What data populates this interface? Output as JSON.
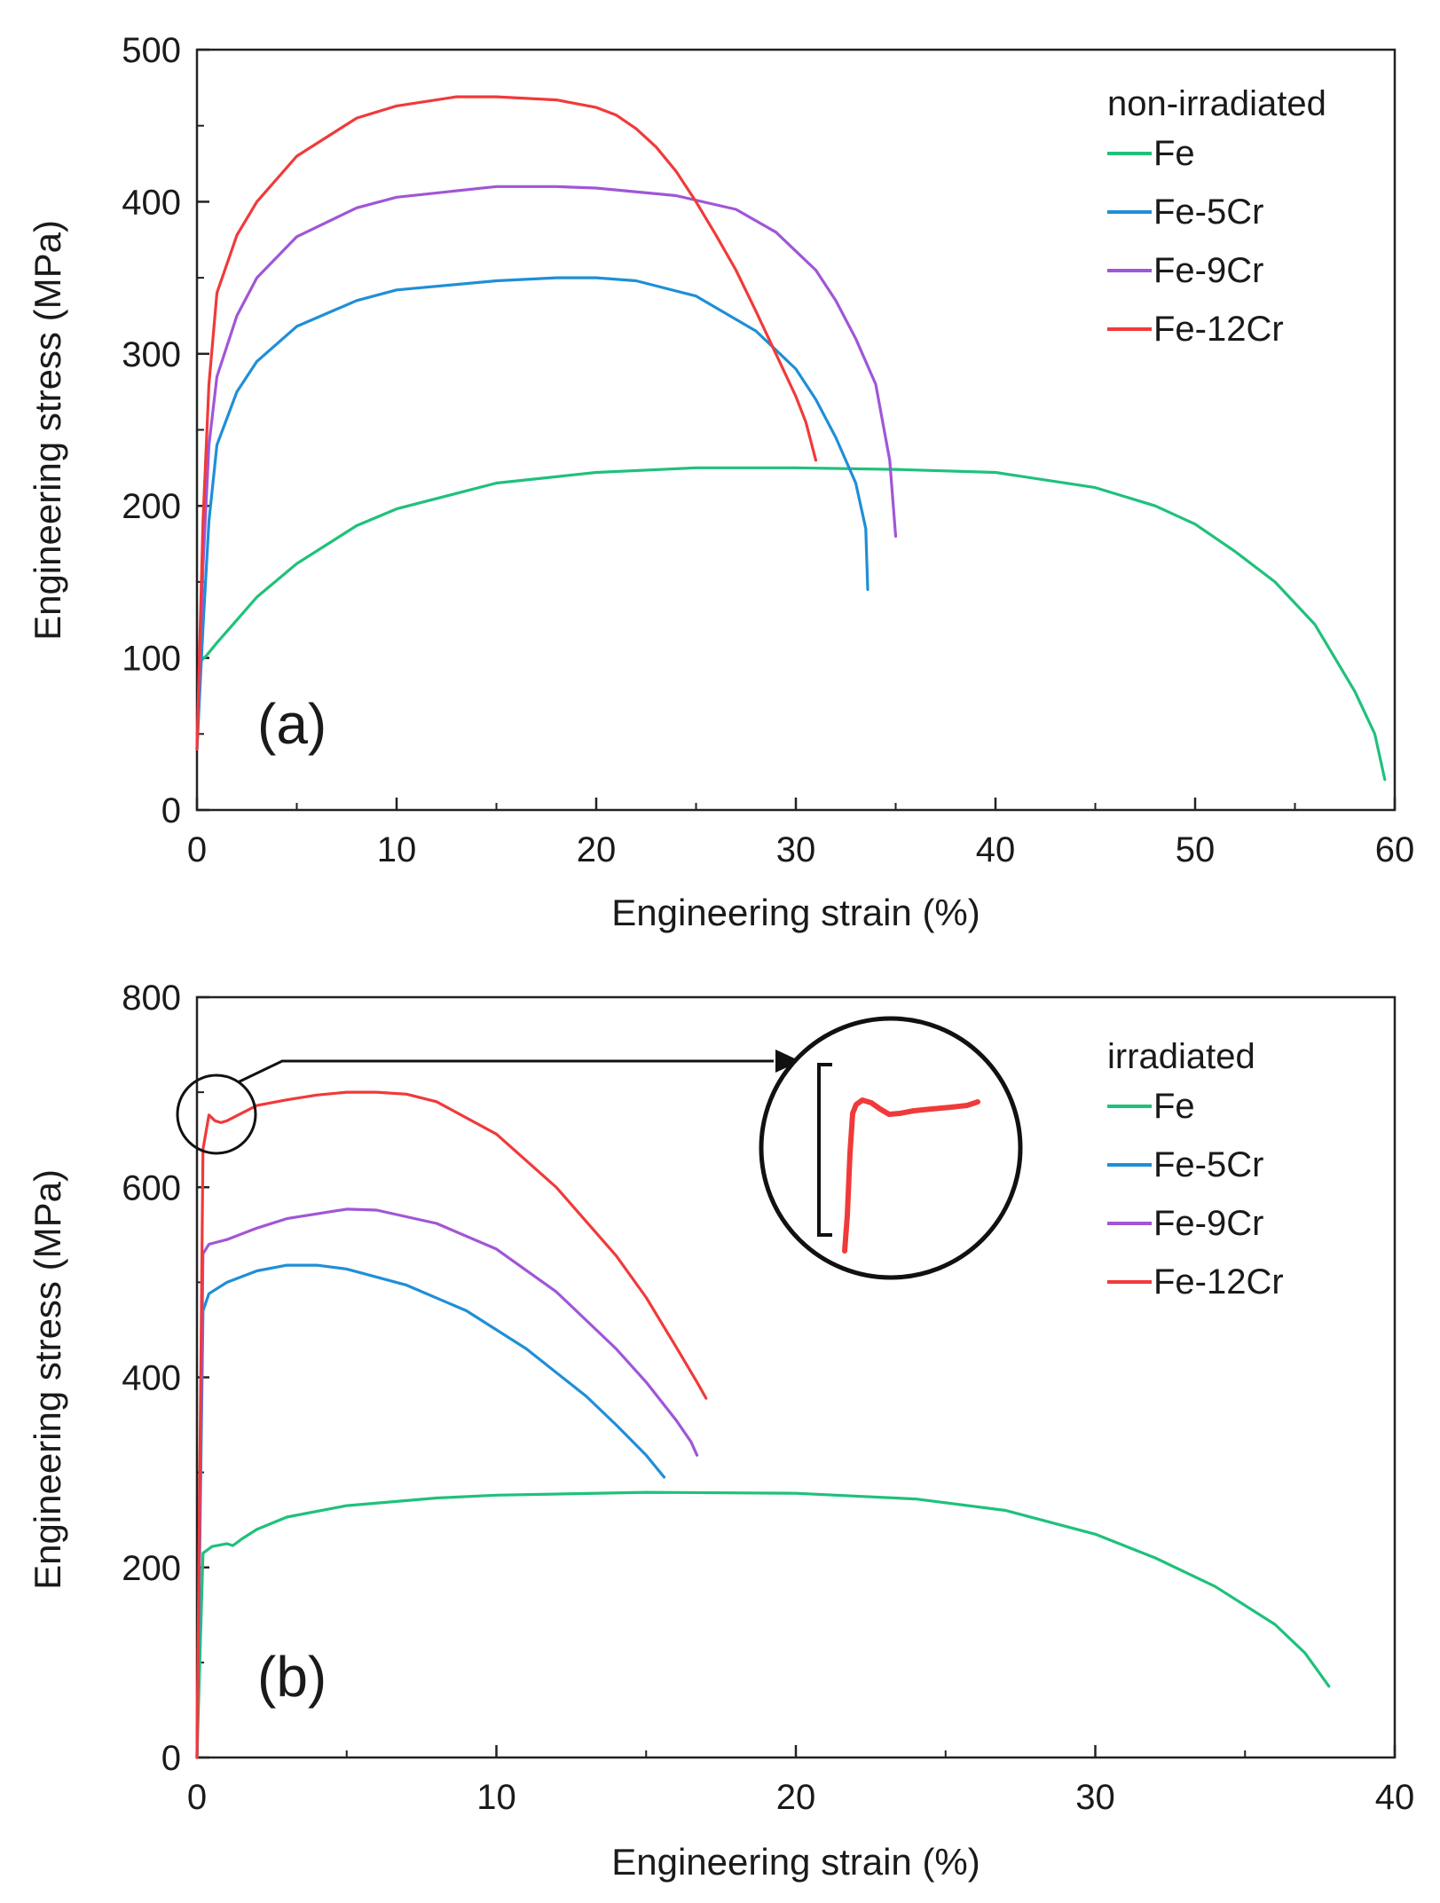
{
  "chart_data": [
    {
      "type": "line",
      "panel_label": "(a)",
      "xlabel": "Engineering strain (%)",
      "ylabel": "Engineering stress (MPa)",
      "xlim": [
        0,
        60
      ],
      "ylim": [
        0,
        500
      ],
      "xticks": [
        0,
        10,
        20,
        30,
        40,
        50,
        60
      ],
      "yticks": [
        0,
        100,
        200,
        300,
        400,
        500
      ],
      "grid": false,
      "legend_title": "non-irradiated",
      "legend_position": "top-right",
      "series": [
        {
          "name": "Fe",
          "color": "#1fc17b",
          "x": [
            0,
            0.2,
            0.5,
            1,
            2,
            3,
            5,
            8,
            10,
            15,
            20,
            25,
            30,
            35,
            40,
            45,
            48,
            50,
            52,
            54,
            56,
            57,
            58,
            59,
            59.5
          ],
          "y": [
            40,
            98,
            102,
            110,
            125,
            140,
            162,
            187,
            198,
            215,
            222,
            225,
            225,
            224,
            222,
            212,
            200,
            188,
            170,
            150,
            122,
            100,
            78,
            50,
            20
          ]
        },
        {
          "name": "Fe-5Cr",
          "color": "#1f8fd6",
          "x": [
            0,
            0.3,
            0.6,
            1,
            2,
            3,
            5,
            8,
            10,
            15,
            18,
            20,
            22,
            25,
            28,
            30,
            31,
            32,
            33,
            33.5,
            33.6
          ],
          "y": [
            40,
            120,
            190,
            240,
            275,
            295,
            318,
            335,
            342,
            348,
            350,
            350,
            348,
            338,
            315,
            290,
            270,
            245,
            215,
            185,
            145
          ]
        },
        {
          "name": "Fe-9Cr",
          "color": "#a056d6",
          "x": [
            0,
            0.3,
            0.6,
            1,
            2,
            3,
            5,
            8,
            10,
            15,
            18,
            20,
            24,
            27,
            29,
            31,
            32,
            33,
            34,
            34.7,
            35
          ],
          "y": [
            40,
            160,
            240,
            285,
            325,
            350,
            377,
            396,
            403,
            410,
            410,
            409,
            404,
            395,
            380,
            355,
            335,
            310,
            280,
            230,
            180
          ]
        },
        {
          "name": "Fe-12Cr",
          "color": "#f03a3a",
          "x": [
            0,
            0.3,
            0.6,
            1,
            2,
            3,
            5,
            8,
            10,
            13,
            15,
            18,
            20,
            21,
            22,
            23,
            24,
            25,
            26,
            27,
            28,
            29,
            30,
            30.5,
            31
          ],
          "y": [
            40,
            190,
            280,
            340,
            378,
            400,
            430,
            455,
            463,
            469,
            469,
            467,
            462,
            457,
            448,
            436,
            420,
            400,
            378,
            355,
            328,
            300,
            272,
            255,
            230
          ]
        }
      ]
    },
    {
      "type": "line",
      "panel_label": "(b)",
      "xlabel": "Engineering strain (%)",
      "ylabel": "Engineering stress (MPa)",
      "xlim": [
        0,
        40
      ],
      "ylim": [
        0,
        800
      ],
      "xticks": [
        0,
        10,
        20,
        30,
        40
      ],
      "yticks": [
        0,
        200,
        400,
        600,
        800
      ],
      "grid": false,
      "legend_title": "irradiated",
      "legend_position": "top-right",
      "series": [
        {
          "name": "Fe",
          "color": "#1fc17b",
          "x": [
            0,
            0.2,
            0.5,
            1,
            1.2,
            1.5,
            2,
            3,
            5,
            8,
            10,
            15,
            20,
            24,
            27,
            30,
            32,
            34,
            36,
            37,
            37.8
          ],
          "y": [
            0,
            215,
            222,
            225,
            223,
            230,
            240,
            253,
            265,
            273,
            276,
            279,
            278,
            272,
            260,
            235,
            210,
            180,
            140,
            110,
            75
          ]
        },
        {
          "name": "Fe-5Cr",
          "color": "#1f8fd6",
          "x": [
            0,
            0.2,
            0.4,
            1,
            2,
            3,
            4,
            5,
            7,
            9,
            11,
            13,
            14,
            15,
            15.6
          ],
          "y": [
            0,
            470,
            488,
            500,
            512,
            518,
            518,
            514,
            497,
            470,
            430,
            380,
            350,
            318,
            295
          ]
        },
        {
          "name": "Fe-9Cr",
          "color": "#a056d6",
          "x": [
            0,
            0.2,
            0.4,
            1,
            2,
            3,
            5,
            6,
            8,
            10,
            12,
            14,
            15,
            16,
            16.5,
            16.7
          ],
          "y": [
            0,
            530,
            540,
            545,
            557,
            567,
            577,
            576,
            562,
            535,
            490,
            430,
            395,
            355,
            332,
            318
          ]
        },
        {
          "name": "Fe-12Cr",
          "color": "#f03a3a",
          "x": [
            0,
            0.2,
            0.4,
            0.6,
            0.8,
            1,
            1.5,
            2,
            3,
            4,
            5,
            6,
            7,
            8,
            10,
            12,
            14,
            15,
            16,
            16.7,
            17
          ],
          "y": [
            0,
            640,
            676,
            670,
            668,
            670,
            678,
            686,
            692,
            697,
            700,
            700,
            698,
            690,
            656,
            600,
            528,
            484,
            432,
            395,
            378
          ]
        }
      ]
    }
  ]
}
